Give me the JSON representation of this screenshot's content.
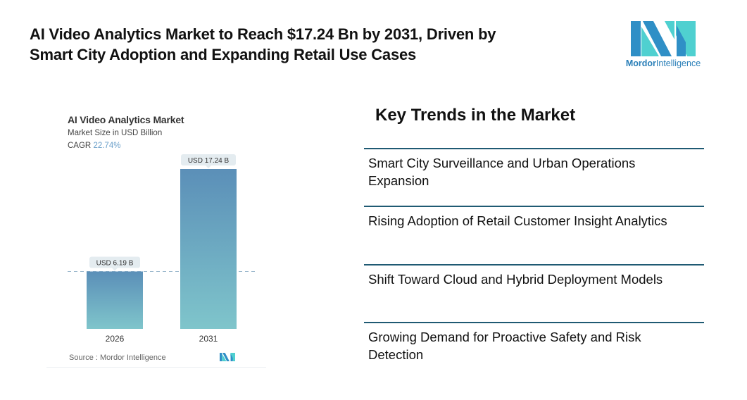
{
  "headline": {
    "line1": "AI Video Analytics Market to Reach $17.24 Bn by 2031, Driven by",
    "line2": "Smart City Adoption and Expanding Retail Use Cases"
  },
  "brand": {
    "name_bold": "Mordor",
    "name_light": "Intelligence",
    "colors": {
      "dark": "#2f8fc6",
      "light": "#4fd0d0"
    }
  },
  "chart_data": {
    "type": "bar",
    "title": "AI Video Analytics Market",
    "subtitle": "Market Size in USD Billion",
    "cagr_label": "CAGR",
    "cagr_value": "22.74%",
    "categories": [
      "2026",
      "2031"
    ],
    "values": [
      6.19,
      17.24
    ],
    "data_labels": [
      "USD 6.19 B",
      "USD 17.24 B"
    ],
    "unit": "USD Billion",
    "xlabel": "",
    "ylabel": "",
    "ylim": [
      0,
      17.24
    ],
    "grid": false,
    "reference_line": {
      "value": 6.19,
      "style": "dashed"
    },
    "source": "Source :  Mordor Intelligence",
    "colors": {
      "bar_top": "#5b8fb8",
      "bar_bottom": "#7fc5cb",
      "label_bg": "#e4ecf0",
      "ref_line": "#9bb8cc"
    }
  },
  "trends": {
    "title": "Key Trends in the Market",
    "items": [
      {
        "label": "Smart City Surveillance and Urban Operations Expansion"
      },
      {
        "label": "Rising Adoption of Retail Customer Insight Analytics"
      },
      {
        "label": "Shift Toward Cloud and Hybrid Deployment Models"
      },
      {
        "label": "Growing Demand for Proactive Safety and Risk Detection"
      }
    ],
    "rule_color": "#1f5a73"
  }
}
